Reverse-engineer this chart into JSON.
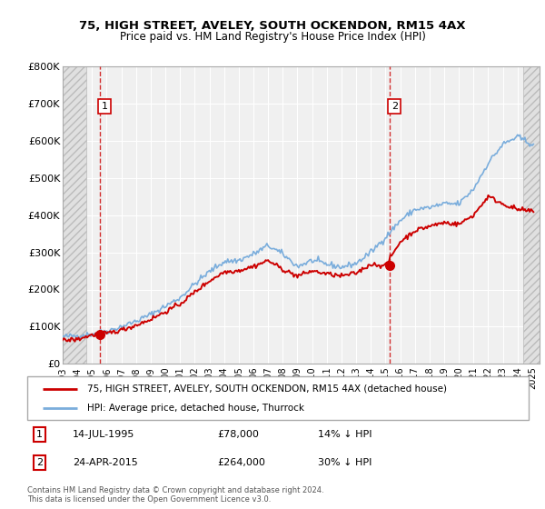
{
  "title1": "75, HIGH STREET, AVELEY, SOUTH OCKENDON, RM15 4AX",
  "title2": "Price paid vs. HM Land Registry's House Price Index (HPI)",
  "legend_line1": "75, HIGH STREET, AVELEY, SOUTH OCKENDON, RM15 4AX (detached house)",
  "legend_line2": "HPI: Average price, detached house, Thurrock",
  "footnote": "Contains HM Land Registry data © Crown copyright and database right 2024.\nThis data is licensed under the Open Government Licence v3.0.",
  "sale1_label": "1",
  "sale1_date": "14-JUL-1995",
  "sale1_price": "£78,000",
  "sale1_hpi": "14% ↓ HPI",
  "sale1_year": 1995.54,
  "sale1_value": 78000,
  "sale2_label": "2",
  "sale2_date": "24-APR-2015",
  "sale2_price": "£264,000",
  "sale2_hpi": "30% ↓ HPI",
  "sale2_year": 2015.31,
  "sale2_value": 264000,
  "ylim": [
    0,
    800000
  ],
  "xlim_start": 1993.0,
  "xlim_end": 2025.5,
  "hatch_start_end": 1994.6,
  "hatch_end_start": 2024.4,
  "price_color": "#cc0000",
  "hpi_color": "#7aaddc",
  "bg_color": "#f0f0f0",
  "yticks": [
    0,
    100000,
    200000,
    300000,
    400000,
    500000,
    600000,
    700000,
    800000
  ],
  "ytick_labels": [
    "£0",
    "£100K",
    "£200K",
    "£300K",
    "£400K",
    "£500K",
    "£600K",
    "£700K",
    "£800K"
  ],
  "xticks": [
    1993,
    1994,
    1995,
    1996,
    1997,
    1998,
    1999,
    2000,
    2001,
    2002,
    2003,
    2004,
    2005,
    2006,
    2007,
    2008,
    2009,
    2010,
    2011,
    2012,
    2013,
    2014,
    2015,
    2016,
    2017,
    2018,
    2019,
    2020,
    2021,
    2022,
    2023,
    2024,
    2025
  ]
}
